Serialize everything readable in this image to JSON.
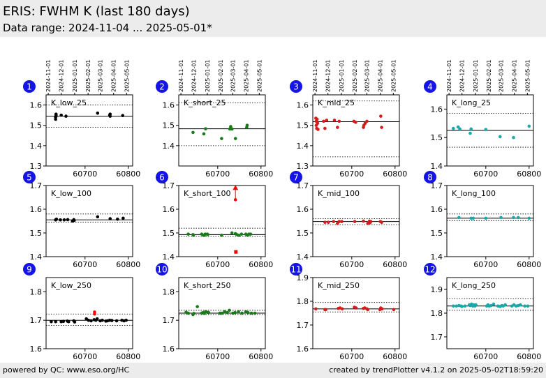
{
  "header": {
    "title": "ERIS: FWHM K (last 180 days)",
    "subtitle": "Data range: 2024-11-04 ... 2025-05-01*"
  },
  "footer": {
    "left": "powered by QC: www.eso.org/HC",
    "right": "created by trendPlotter v4.1.2 on 2025-05-02T18:59:20"
  },
  "colors": {
    "header_bg": "#ececec",
    "badge": "#1414e6",
    "low": "#000000",
    "short": "#1a7a1a",
    "mid": "#d51c1c",
    "long": "#1aa8a8",
    "outlier": "#ff0000"
  },
  "date_ticks": [
    "2024-11-01",
    "2024-12-01",
    "2025-01-01",
    "2025-02-01",
    "2025-03-01",
    "2025-04-01",
    "2025-05-01"
  ],
  "chart_data": [
    {
      "type": "scatter",
      "badge": "1",
      "label": "K_low_25",
      "color_key": "low",
      "xlim": [
        60610,
        60810
      ],
      "ylim": [
        1.3,
        1.65
      ],
      "yticks": [
        1.3,
        1.4,
        1.5,
        1.6
      ],
      "ytick_labels": [
        "1.3",
        "1.4",
        "1.5",
        "1.6"
      ],
      "xticks": [
        60700,
        60800
      ],
      "xtick_labels": [
        "60700",
        "60800"
      ],
      "ref": 1.545,
      "band": [
        1.49,
        1.6
      ],
      "x": [
        60632,
        60632,
        60633,
        60633,
        60633,
        60645,
        60656,
        60729,
        60757,
        60758,
        60758,
        60787
      ],
      "y": [
        1.53,
        1.54,
        1.545,
        1.55,
        1.555,
        1.55,
        1.545,
        1.56,
        1.55,
        1.545,
        1.555,
        1.548
      ]
    },
    {
      "type": "scatter",
      "badge": "2",
      "label": "K_short_25",
      "color_key": "short",
      "xlim": [
        60610,
        60810
      ],
      "ylim": [
        1.3,
        1.65
      ],
      "yticks": [
        1.4,
        1.5,
        1.6
      ],
      "ytick_labels": [
        "1.4",
        "1.5",
        "1.6"
      ],
      "xticks": [
        60700,
        60800
      ],
      "xtick_labels": [
        "60700",
        "60800"
      ],
      "ref": 1.483,
      "band": [
        1.4,
        1.61
      ],
      "x": [
        60643,
        60668,
        60672,
        60709,
        60728,
        60730,
        60733,
        60741,
        60767,
        60768
      ],
      "y": [
        1.465,
        1.458,
        1.483,
        1.435,
        1.482,
        1.494,
        1.482,
        1.435,
        1.49,
        1.5
      ]
    },
    {
      "type": "scatter",
      "badge": "3",
      "label": "K_mid_25",
      "color_key": "mid",
      "xlim": [
        60610,
        60810
      ],
      "ylim": [
        1.3,
        1.65
      ],
      "yticks": [
        1.3,
        1.4,
        1.5,
        1.6
      ],
      "ytick_labels": [
        "1.3",
        "1.4",
        "1.5",
        "1.6"
      ],
      "xticks": [
        60700,
        60800
      ],
      "xtick_labels": [
        "60700",
        "60800"
      ],
      "ref": 1.518,
      "band": [
        1.345,
        1.62
      ],
      "x": [
        60617,
        60618,
        60618,
        60619,
        60620,
        60621,
        60622,
        60635,
        60638,
        60642,
        60660,
        60667,
        60671,
        60705,
        60709,
        60727,
        60728,
        60731,
        60735,
        60767,
        60769
      ],
      "y": [
        1.535,
        1.5,
        1.52,
        1.485,
        1.53,
        1.51,
        1.48,
        1.52,
        1.485,
        1.525,
        1.525,
        1.49,
        1.52,
        1.52,
        1.515,
        1.49,
        1.5,
        1.51,
        1.52,
        1.545,
        1.49
      ]
    },
    {
      "type": "scatter",
      "badge": "4",
      "label": "K_long_25",
      "color_key": "long",
      "xlim": [
        60610,
        60810
      ],
      "ylim": [
        1.4,
        1.65
      ],
      "yticks": [
        1.4,
        1.5,
        1.6
      ],
      "ytick_labels": [
        "1.4",
        "1.5",
        "1.6"
      ],
      "xticks": [
        60700,
        60800
      ],
      "xtick_labels": [
        "60700",
        "60800"
      ],
      "ref": 1.525,
      "band": [
        1.466,
        1.585
      ],
      "x": [
        60625,
        60636,
        60640,
        60664,
        60666,
        60700,
        60733,
        60764,
        60800
      ],
      "y": [
        1.532,
        1.537,
        1.53,
        1.515,
        1.53,
        1.528,
        1.503,
        1.5,
        1.54
      ]
    },
    {
      "type": "scatter",
      "badge": "5",
      "label": "K_low_100",
      "color_key": "low",
      "xlim": [
        60610,
        60810
      ],
      "ylim": [
        1.4,
        1.7
      ],
      "yticks": [
        1.4,
        1.5,
        1.6,
        1.7
      ],
      "ytick_labels": [
        "1.4",
        "1.5",
        "1.6",
        "1.7"
      ],
      "xticks": [
        60700,
        60800
      ],
      "xtick_labels": [
        "60700",
        "60800"
      ],
      "ref": 1.555,
      "band": [
        1.545,
        1.58
      ],
      "x": [
        60632,
        60634,
        60643,
        60652,
        60660,
        60671,
        60674,
        60675,
        60729,
        60758,
        60775,
        60788
      ],
      "y": [
        1.555,
        1.558,
        1.555,
        1.555,
        1.556,
        1.55,
        1.556,
        1.553,
        1.568,
        1.56,
        1.558,
        1.562
      ]
    },
    {
      "type": "scatter",
      "badge": "6",
      "label": "K_short_100",
      "color_key": "short",
      "xlim": [
        60610,
        60810
      ],
      "ylim": [
        1.4,
        1.7
      ],
      "yticks": [
        1.4,
        1.5,
        1.6,
        1.7
      ],
      "ytick_labels": [
        "1.4",
        "1.5",
        "1.6",
        "1.7"
      ],
      "xticks": [
        60700,
        60800
      ],
      "xtick_labels": [
        "60700",
        "60800"
      ],
      "ref": 1.493,
      "band": [
        1.485,
        1.52
      ],
      "x": [
        60632,
        60643,
        60644,
        60663,
        60667,
        60669,
        60671,
        60676,
        60677,
        60709,
        60733,
        60741,
        60744,
        60749,
        60755,
        60765,
        60769,
        60772,
        60776
      ],
      "y": [
        1.495,
        1.493,
        1.49,
        1.495,
        1.49,
        1.49,
        1.495,
        1.495,
        1.493,
        1.49,
        1.5,
        1.497,
        1.493,
        1.49,
        1.495,
        1.495,
        1.49,
        1.495,
        1.495
      ],
      "outliers": [
        {
          "x": 60741,
          "y": 1.69,
          "marker": "triangle-up"
        },
        {
          "x": 60741,
          "y": 1.64,
          "marker": "dot"
        },
        {
          "x": 60742,
          "y": 1.42,
          "marker": "square"
        }
      ]
    },
    {
      "type": "scatter",
      "badge": "7",
      "label": "K_mid_100",
      "color_key": "mid",
      "xlim": [
        60610,
        60810
      ],
      "ylim": [
        1.4,
        1.7
      ],
      "yticks": [
        1.4,
        1.5,
        1.6,
        1.7
      ],
      "ytick_labels": [
        "1.4",
        "1.5",
        "1.6",
        "1.7"
      ],
      "xticks": [
        60700,
        60800
      ],
      "xtick_labels": [
        "60700",
        "60800"
      ],
      "ref": 1.548,
      "band": [
        1.535,
        1.56
      ],
      "x": [
        60638,
        60646,
        60658,
        60667,
        60671,
        60677,
        60707,
        60727,
        60737,
        60739,
        60741,
        60742,
        60744,
        60766,
        60769
      ],
      "y": [
        1.545,
        1.545,
        1.548,
        1.54,
        1.548,
        1.548,
        1.548,
        1.55,
        1.54,
        1.545,
        1.55,
        1.543,
        1.548,
        1.548,
        1.545
      ]
    },
    {
      "type": "scatter",
      "badge": "8",
      "label": "K_long_100",
      "color_key": "long",
      "xlim": [
        60610,
        60810
      ],
      "ylim": [
        1.4,
        1.7
      ],
      "yticks": [
        1.4,
        1.5,
        1.6,
        1.7
      ],
      "ytick_labels": [
        "1.4",
        "1.5",
        "1.6",
        "1.7"
      ],
      "xticks": [
        60700,
        60800
      ],
      "xtick_labels": [
        "60700",
        "60800"
      ],
      "ref": 1.562,
      "band": [
        1.552,
        1.58
      ],
      "x": [
        60638,
        60666,
        60671,
        60700,
        60735,
        60764,
        60775,
        60800
      ],
      "y": [
        1.565,
        1.562,
        1.562,
        1.562,
        1.565,
        1.565,
        1.565,
        1.562
      ]
    },
    {
      "type": "scatter",
      "badge": "9",
      "label": "K_low_250",
      "color_key": "low",
      "xlim": [
        60610,
        60810
      ],
      "ylim": [
        1.6,
        1.85
      ],
      "yticks": [
        1.6,
        1.7,
        1.8
      ],
      "ytick_labels": [
        "1.6",
        "1.7",
        "1.8"
      ],
      "xticks": [
        60700,
        60800
      ],
      "xtick_labels": [
        "60700",
        "60800"
      ],
      "ref": 1.7,
      "band": [
        1.682,
        1.722
      ],
      "x": [
        60622,
        60632,
        60645,
        60650,
        60659,
        60662,
        60674,
        60676,
        60703,
        60708,
        60714,
        60721,
        60725,
        60728,
        60735,
        60740,
        60748,
        60752,
        60757,
        60762,
        60773,
        60785,
        60790,
        60795
      ],
      "y": [
        1.695,
        1.695,
        1.695,
        1.696,
        1.697,
        1.695,
        1.698,
        1.694,
        1.705,
        1.7,
        1.698,
        1.702,
        1.7,
        1.705,
        1.698,
        1.7,
        1.697,
        1.698,
        1.7,
        1.699,
        1.698,
        1.7,
        1.698,
        1.7
      ],
      "outliers": [
        {
          "x": 60722,
          "y": 1.729,
          "marker": "dot"
        },
        {
          "x": 60722,
          "y": 1.722,
          "marker": "dot"
        }
      ]
    },
    {
      "type": "scatter",
      "badge": "10",
      "label": "K_short_250",
      "color_key": "short",
      "xlim": [
        60610,
        60810
      ],
      "ylim": [
        1.6,
        1.85
      ],
      "yticks": [
        1.6,
        1.7,
        1.8
      ],
      "ytick_labels": [
        "1.6",
        "1.7",
        "1.8"
      ],
      "xticks": [
        60700,
        60800
      ],
      "xtick_labels": [
        "60700",
        "60800"
      ],
      "ref": 1.725,
      "band": [
        1.72,
        1.735
      ],
      "x": [
        60627,
        60632,
        60643,
        60645,
        60653,
        60663,
        60666,
        60669,
        60672,
        60676,
        60679,
        60705,
        60710,
        60716,
        60722,
        60727,
        60735,
        60740,
        60748,
        60756,
        60765,
        60770,
        60778,
        60786
      ],
      "y": [
        1.728,
        1.725,
        1.72,
        1.724,
        1.748,
        1.725,
        1.727,
        1.724,
        1.73,
        1.728,
        1.727,
        1.725,
        1.725,
        1.73,
        1.727,
        1.735,
        1.725,
        1.727,
        1.73,
        1.725,
        1.73,
        1.727,
        1.725,
        1.725
      ]
    },
    {
      "type": "scatter",
      "badge": "11",
      "label": "K_mid_250",
      "color_key": "mid",
      "xlim": [
        60610,
        60810
      ],
      "ylim": [
        1.6,
        1.9
      ],
      "yticks": [
        1.6,
        1.7,
        1.8,
        1.9
      ],
      "ytick_labels": [
        "1.6",
        "1.7",
        "1.8",
        "1.9"
      ],
      "xticks": [
        60700,
        60800
      ],
      "xtick_labels": [
        "60700",
        "60800"
      ],
      "ref": 1.768,
      "band": [
        1.755,
        1.795
      ],
      "x": [
        60617,
        60638,
        60640,
        60669,
        60673,
        60678,
        60706,
        60710,
        60727,
        60730,
        60735,
        60737,
        60765,
        60767,
        60770,
        60797
      ],
      "y": [
        1.768,
        1.765,
        1.765,
        1.77,
        1.772,
        1.768,
        1.775,
        1.772,
        1.77,
        1.772,
        1.768,
        1.765,
        1.765,
        1.772,
        1.768,
        1.765
      ]
    },
    {
      "type": "scatter",
      "badge": "12",
      "label": "K_long_250",
      "color_key": "long",
      "xlim": [
        60610,
        60810
      ],
      "ylim": [
        1.65,
        1.95
      ],
      "yticks": [
        1.7,
        1.8,
        1.9
      ],
      "ytick_labels": [
        "1.7",
        "1.8",
        "1.9"
      ],
      "xticks": [
        60700,
        60800
      ],
      "xtick_labels": [
        "60700",
        "60800"
      ],
      "ref": 1.83,
      "band": [
        1.812,
        1.86
      ],
      "x": [
        60625,
        60632,
        60638,
        60643,
        60645,
        60652,
        60662,
        60664,
        60667,
        60670,
        60672,
        60675,
        60677,
        60702,
        60705,
        60708,
        60712,
        60718,
        60728,
        60733,
        60737,
        60740,
        60745,
        60760,
        60765,
        60770,
        60775,
        60780,
        60790,
        60797
      ],
      "y": [
        1.83,
        1.83,
        1.832,
        1.83,
        1.828,
        1.83,
        1.835,
        1.832,
        1.838,
        1.83,
        1.835,
        1.83,
        1.835,
        1.83,
        1.835,
        1.83,
        1.832,
        1.838,
        1.83,
        1.828,
        1.832,
        1.83,
        1.835,
        1.83,
        1.835,
        1.83,
        1.832,
        1.835,
        1.83,
        1.83
      ]
    }
  ]
}
